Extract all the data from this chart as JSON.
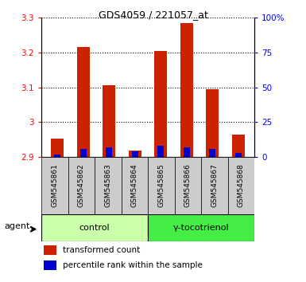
{
  "title": "GDS4059 / 221057_at",
  "samples": [
    "GSM545861",
    "GSM545862",
    "GSM545863",
    "GSM545864",
    "GSM545865",
    "GSM545866",
    "GSM545867",
    "GSM545868"
  ],
  "red_values": [
    2.952,
    3.215,
    3.105,
    2.918,
    3.205,
    3.285,
    3.095,
    2.963
  ],
  "blue_pct": [
    2,
    6,
    7,
    4,
    8,
    7,
    6,
    3
  ],
  "ylim_left": [
    2.9,
    3.3
  ],
  "ylim_right": [
    0,
    100
  ],
  "yticks_left": [
    2.9,
    3.0,
    3.1,
    3.2,
    3.3
  ],
  "yticks_right": [
    0,
    25,
    50,
    75,
    100
  ],
  "ytick_labels_left": [
    "2.9",
    "3",
    "3.1",
    "3.2",
    "3.3"
  ],
  "ytick_labels_right": [
    "0",
    "25",
    "50",
    "75",
    "100%"
  ],
  "groups": [
    {
      "label": "control",
      "start": 0,
      "end": 3,
      "color": "#ccffaa"
    },
    {
      "label": "γ-tocotrienol",
      "start": 4,
      "end": 7,
      "color": "#44ee44"
    }
  ],
  "bar_width": 0.5,
  "red_color": "#cc2200",
  "blue_color": "#0000cc",
  "sample_bg_color": "#cccccc",
  "bg_color": "#ffffff",
  "legend_items": [
    {
      "color": "#cc2200",
      "label": "transformed count"
    },
    {
      "color": "#0000cc",
      "label": "percentile rank within the sample"
    }
  ]
}
